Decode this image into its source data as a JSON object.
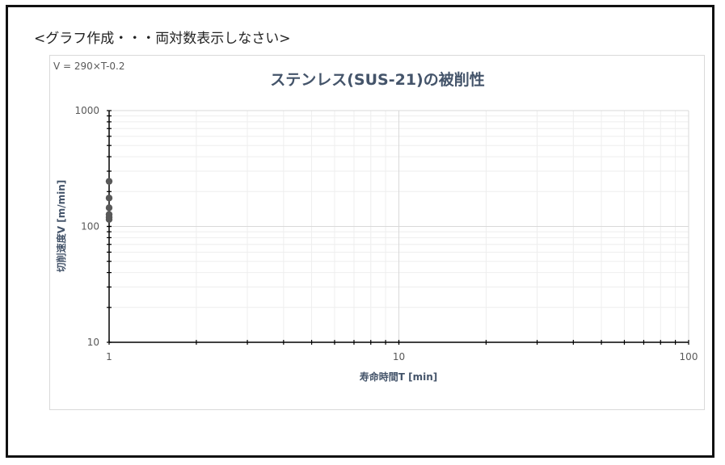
{
  "page": {
    "heading": "<グラフ作成・・・両対数表示しなさい>"
  },
  "chart_data": {
    "type": "scatter",
    "title": "ステンレス(SUS-21)の被削性",
    "annotation": "V = 290×T-0.2",
    "xlabel": "寿命時間T [min]",
    "ylabel": "切削速度V [m/min]",
    "xscale": "log",
    "yscale": "log",
    "xlim": [
      1,
      100
    ],
    "ylim": [
      10,
      1000
    ],
    "x_tick_labels": [
      "1",
      "10",
      "100"
    ],
    "y_tick_labels": [
      "10",
      "100",
      "1000"
    ],
    "grid": true,
    "legend": "none",
    "marker_color": "#595959",
    "series": [
      {
        "x": [
          1,
          1,
          1,
          1,
          1,
          1
        ],
        "y": [
          245,
          176,
          145,
          127,
          120,
          115
        ]
      }
    ]
  }
}
